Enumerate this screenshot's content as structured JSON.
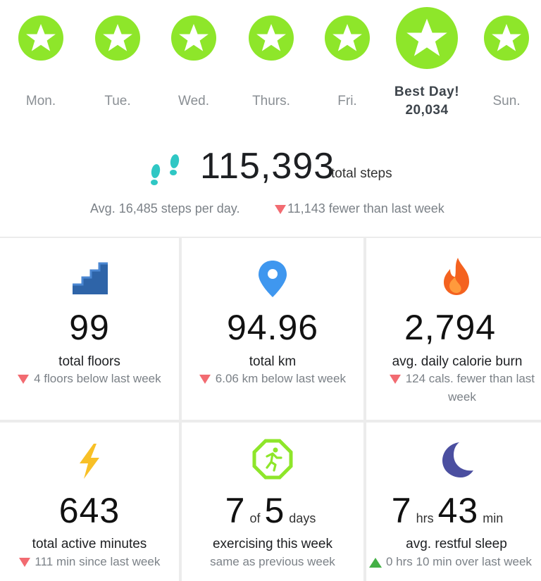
{
  "week": {
    "days": [
      {
        "label": "Mon."
      },
      {
        "label": "Tue."
      },
      {
        "label": "Wed."
      },
      {
        "label": "Thurs."
      },
      {
        "label": "Fri."
      },
      {
        "label": "Best Day!",
        "value": "20,034"
      },
      {
        "label": "Sun."
      }
    ],
    "star_color": "#8ee62a"
  },
  "steps": {
    "total": "115,393",
    "unit": "total steps",
    "average": "Avg. 16,485 steps per day.",
    "change": "11,143 fewer than last week"
  },
  "stats": {
    "floors": {
      "value": "99",
      "label": "total floors",
      "change": "4 floors below last week",
      "icon": "stairs-icon"
    },
    "distance": {
      "value": "94.96",
      "label": "total km",
      "change": "6.06 km below last week",
      "icon": "location-pin-icon"
    },
    "calories": {
      "value": "2,794",
      "label": "avg. daily calorie burn",
      "change": "124 cals. fewer than last week",
      "icon": "flame-icon"
    },
    "active": {
      "value": "643",
      "label": "total active minutes",
      "change": "111 min since last week",
      "icon": "lightning-icon"
    },
    "exercise": {
      "value_done": "7",
      "of": "of",
      "value_goal": "5",
      "unit": "days",
      "label": "exercising this week",
      "change": "same as previous week",
      "icon": "running-person-icon"
    },
    "sleep": {
      "hours": "7",
      "hours_unit": "hrs",
      "minutes": "43",
      "minutes_unit": "min",
      "label": "avg. restful sleep",
      "change": "0 hrs 10 min over last week",
      "icon": "moon-icon"
    }
  },
  "colors": {
    "down": "#f26b71",
    "up": "#44b046",
    "accent_green": "#8ee62a"
  }
}
